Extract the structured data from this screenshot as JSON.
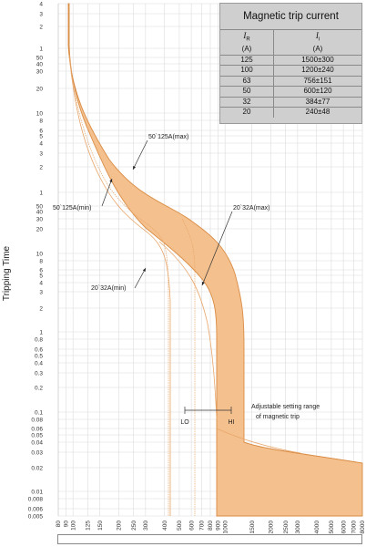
{
  "chart_data": {
    "type": "line",
    "title": "",
    "ylabel": "Tripping Time",
    "xlabel": "",
    "x_scale": "log",
    "y_scale": "log",
    "xlim": [
      80,
      8000
    ],
    "ylim": [
      0.005,
      4
    ],
    "grid": true,
    "x_ticks": [
      80,
      90,
      100,
      125,
      150,
      200,
      250,
      300,
      400,
      500,
      600,
      700,
      800,
      900,
      1000,
      1500,
      2000,
      2500,
      3000,
      4000,
      5000,
      6000,
      7000,
      8000
    ],
    "x_tick_labels": [
      "80",
      "90",
      "100",
      "125",
      "150",
      "200",
      "250",
      "300",
      "400",
      "500",
      "600",
      "700",
      "800",
      "900",
      "1000",
      "1500",
      "2000",
      "2500",
      "3000",
      "4000",
      "5000",
      "6000",
      "7000",
      "8000"
    ],
    "y_ticks": [
      {
        "label": "4"
      },
      {
        "label": "3"
      },
      {
        "label": "2"
      },
      {
        "label": "1"
      },
      {
        "label": "50"
      },
      {
        "label": "40"
      },
      {
        "label": "30"
      },
      {
        "label": "20"
      },
      {
        "label": "10"
      },
      {
        "label": "8"
      },
      {
        "label": "6"
      },
      {
        "label": "5"
      },
      {
        "label": "4"
      },
      {
        "label": "3"
      },
      {
        "label": "2"
      },
      {
        "label": "1"
      },
      {
        "label": "50"
      },
      {
        "label": "40"
      },
      {
        "label": "30"
      },
      {
        "label": "20"
      },
      {
        "label": "10"
      },
      {
        "label": "8"
      },
      {
        "label": "6"
      },
      {
        "label": "5"
      },
      {
        "label": "4"
      },
      {
        "label": "3"
      },
      {
        "label": "2"
      },
      {
        "label": "1"
      },
      {
        "label": "0.8"
      },
      {
        "label": "0.6"
      },
      {
        "label": "0.5"
      },
      {
        "label": "0.4"
      },
      {
        "label": "0.3"
      },
      {
        "label": "0.2"
      },
      {
        "label": "0.1"
      },
      {
        "label": "0.08"
      },
      {
        "label": "0.06"
      },
      {
        "label": "0.05"
      },
      {
        "label": "0.04"
      },
      {
        "label": "0.03"
      },
      {
        "label": "0.02"
      },
      {
        "label": "0.01"
      },
      {
        "label": "0.008"
      },
      {
        "label": "0.006"
      },
      {
        "label": "0.005"
      }
    ],
    "band": {
      "fill_color": "#f4c08e",
      "stroke_color": "#d98c44",
      "upper_curve_name": "50`125A(max)",
      "lower_curve_name": "50`125A(min)"
    },
    "thin_curve_color": "#e8a66a",
    "annotations": {
      "max_125": "50`125A(max)",
      "min_125": "50`125A(min)",
      "max_32": "20`32A(max)",
      "min_32": "20`32A(min)",
      "adjustable": "Adjustable setting range",
      "adjustable2": "of magnetic trip",
      "lo": "LO",
      "hi": "HI"
    }
  },
  "trip_table": {
    "title": "Magnetic trip current",
    "col1_symbol": "I",
    "col1_sub": "R",
    "col1_unit": "(A)",
    "col2_symbol": "I",
    "col2_sub": "i",
    "col2_unit": "(A)",
    "rows": [
      {
        "ir": "125",
        "ii": "1500±300"
      },
      {
        "ir": "100",
        "ii": "1200±240"
      },
      {
        "ir": "63",
        "ii": "756±151"
      },
      {
        "ir": "50",
        "ii": "600±120"
      },
      {
        "ir": "32",
        "ii": "384±77"
      },
      {
        "ir": "20",
        "ii": "240±48"
      }
    ]
  }
}
